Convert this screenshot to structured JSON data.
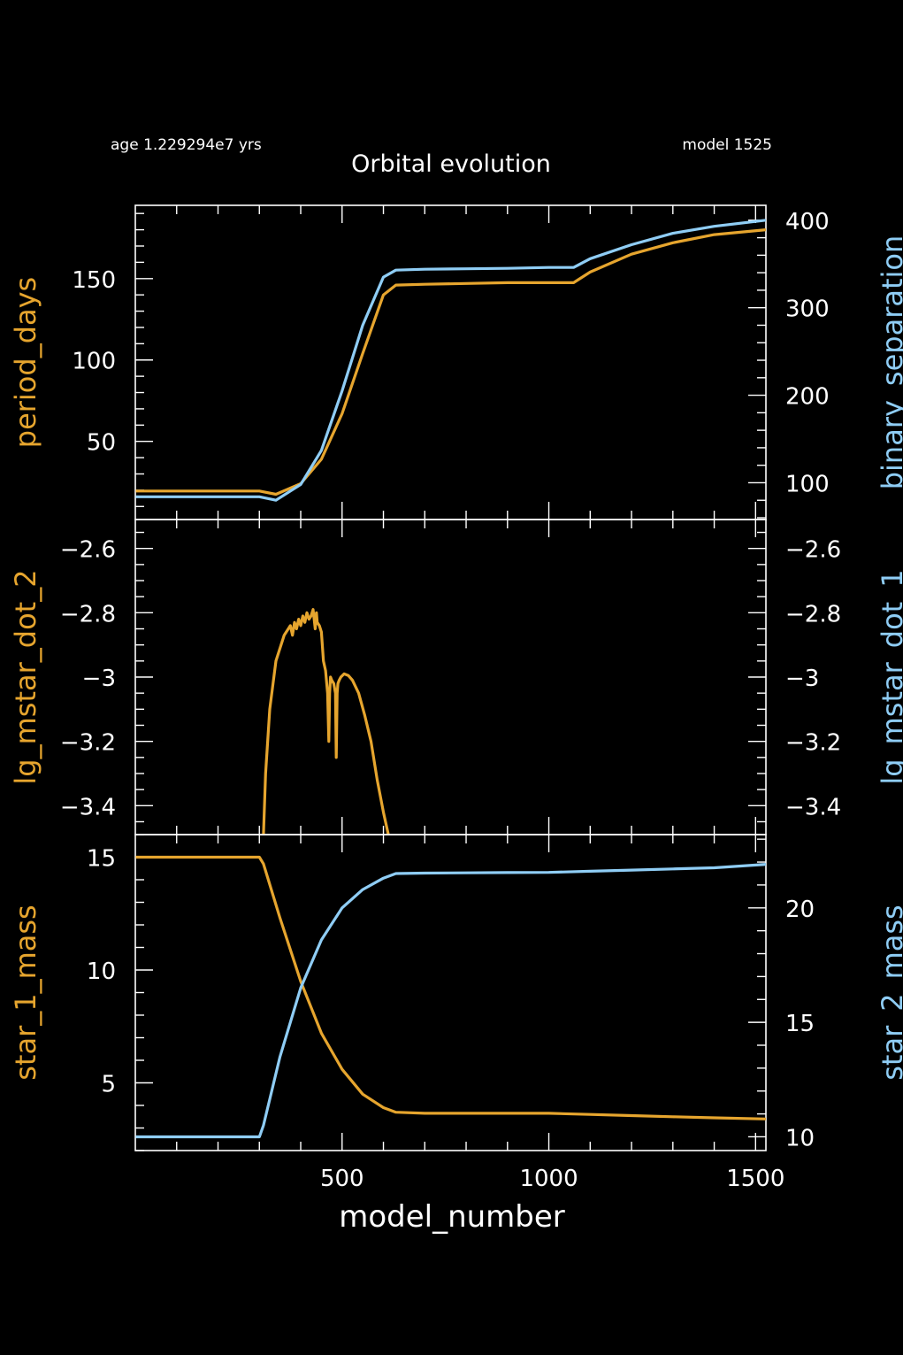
{
  "header": {
    "age_text": "age 1.229294e7 yrs",
    "model_text": "model 1525",
    "title": "Orbital evolution"
  },
  "colors": {
    "background": "#000000",
    "axes": "#ffffff",
    "orange": "#e6a52e",
    "blue": "#8fcdf5"
  },
  "x_axis": {
    "label": "model_number",
    "range": [
      0,
      1525
    ],
    "ticks": [
      500,
      1000,
      1500
    ],
    "tick_labels": [
      "500",
      "1000",
      "1500"
    ]
  },
  "chart_data": [
    {
      "type": "line",
      "x_range": [
        0,
        1525
      ],
      "left_axis": {
        "label": "period_days",
        "range": [
          2,
          195
        ],
        "ticks": [
          50,
          100,
          150
        ],
        "tick_labels": [
          "50",
          "100",
          "150"
        ],
        "color": "#e6a52e"
      },
      "right_axis": {
        "label": "binary_separation",
        "range": [
          58,
          417
        ],
        "ticks": [
          100,
          200,
          300,
          400
        ],
        "tick_labels": [
          "100",
          "200",
          "300",
          "400"
        ],
        "color": "#8fcdf5"
      },
      "series": [
        {
          "name": "period_days",
          "axis": "left",
          "color": "#e6a52e",
          "x": [
            1,
            300,
            340,
            400,
            450,
            500,
            550,
            600,
            630,
            700,
            800,
            900,
            1000,
            1060,
            1100,
            1200,
            1300,
            1400,
            1525
          ],
          "y": [
            19.5,
            19.5,
            17.5,
            24,
            39,
            67,
            104,
            140,
            146,
            146.5,
            147,
            147.5,
            147.5,
            147.5,
            154,
            165,
            172,
            177,
            180
          ]
        },
        {
          "name": "binary_separation",
          "axis": "right",
          "color": "#8fcdf5",
          "x": [
            1,
            300,
            340,
            400,
            450,
            500,
            550,
            600,
            630,
            700,
            800,
            900,
            1000,
            1060,
            1100,
            1200,
            1300,
            1400,
            1525
          ],
          "y": [
            84,
            84,
            80,
            98,
            137,
            205,
            280,
            335,
            343,
            344,
            344.5,
            345,
            346,
            346,
            356,
            372,
            385,
            393,
            400
          ]
        }
      ]
    },
    {
      "type": "line",
      "x_range": [
        0,
        1525
      ],
      "left_axis": {
        "label": "lg_mstar_dot_2",
        "range": [
          -3.49,
          -2.51
        ],
        "ticks": [
          -2.6,
          -2.8,
          -3,
          -3.2,
          -3.4
        ],
        "tick_labels": [
          "−2.6",
          "−2.8",
          "−3",
          "−3.2",
          "−3.4"
        ],
        "color": "#e6a52e"
      },
      "right_axis": {
        "label": "lg_mstar_dot_1",
        "range": [
          -3.49,
          -2.51
        ],
        "ticks": [
          -2.6,
          -2.8,
          -3,
          -3.2,
          -3.4
        ],
        "tick_labels": [
          "−2.6",
          "−2.8",
          "−3",
          "−3.2",
          "−3.4"
        ],
        "color": "#8fcdf5"
      },
      "series": [
        {
          "name": "lg_mstar_dot_2",
          "axis": "left",
          "color": "#e6a52e",
          "x": [
            310,
            315,
            325,
            340,
            360,
            370,
            375,
            380,
            385,
            390,
            395,
            400,
            405,
            410,
            415,
            420,
            425,
            430,
            435,
            438,
            440,
            445,
            450,
            455,
            460,
            465,
            468,
            470,
            472,
            475,
            480,
            484,
            486,
            488,
            490,
            493,
            497,
            505,
            515,
            525,
            540,
            555,
            570,
            585,
            600,
            612
          ],
          "y": [
            -3.49,
            -3.3,
            -3.1,
            -2.95,
            -2.87,
            -2.85,
            -2.84,
            -2.87,
            -2.83,
            -2.85,
            -2.82,
            -2.84,
            -2.81,
            -2.83,
            -2.8,
            -2.82,
            -2.81,
            -2.79,
            -2.85,
            -2.8,
            -2.83,
            -2.84,
            -2.86,
            -2.95,
            -2.98,
            -3.05,
            -3.2,
            -3.05,
            -3.0,
            -3.01,
            -3.02,
            -3.05,
            -3.25,
            -3.05,
            -3.02,
            -3.01,
            -3.0,
            -2.99,
            -2.995,
            -3.01,
            -3.05,
            -3.12,
            -3.2,
            -3.32,
            -3.42,
            -3.49
          ]
        }
      ]
    },
    {
      "type": "line",
      "x_range": [
        0,
        1525
      ],
      "left_axis": {
        "label": "star_1_mass",
        "range": [
          2,
          16
        ],
        "ticks": [
          5,
          10,
          15
        ],
        "tick_labels": [
          "5",
          "10",
          "15"
        ],
        "color": "#e6a52e"
      },
      "right_axis": {
        "label": "star_2_mass",
        "range": [
          9.4,
          23.2
        ],
        "ticks": [
          10,
          15,
          20
        ],
        "tick_labels": [
          "10",
          "15",
          "20"
        ],
        "color": "#8fcdf5"
      },
      "series": [
        {
          "name": "star_1_mass",
          "axis": "left",
          "color": "#e6a52e",
          "x": [
            1,
            300,
            310,
            350,
            400,
            450,
            500,
            550,
            600,
            630,
            700,
            800,
            900,
            1000,
            1100,
            1200,
            1300,
            1400,
            1525
          ],
          "y": [
            15,
            15,
            14.7,
            12.3,
            9.5,
            7.2,
            5.6,
            4.5,
            3.9,
            3.7,
            3.65,
            3.65,
            3.65,
            3.65,
            3.6,
            3.55,
            3.5,
            3.45,
            3.4
          ]
        },
        {
          "name": "star_2_mass",
          "axis": "right",
          "color": "#8fcdf5",
          "x": [
            1,
            300,
            310,
            350,
            400,
            450,
            500,
            550,
            600,
            630,
            700,
            800,
            900,
            1000,
            1100,
            1200,
            1300,
            1400,
            1525
          ],
          "y": [
            10,
            10,
            10.5,
            13.5,
            16.5,
            18.6,
            20,
            20.8,
            21.3,
            21.5,
            21.52,
            21.53,
            21.54,
            21.55,
            21.6,
            21.65,
            21.7,
            21.75,
            21.9
          ]
        }
      ]
    }
  ]
}
